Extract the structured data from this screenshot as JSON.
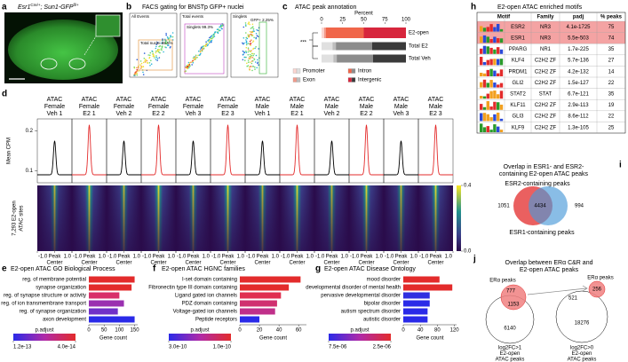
{
  "a": {
    "label": "a",
    "title": {
      "gene1": "Esr1",
      "sup1": "Cre/+",
      "gene2": "; Sun1-GFP",
      "sup2": "fl/+"
    }
  },
  "b": {
    "label": "b",
    "title": "FACS gating for BNSTp GFP+ nuclei",
    "plots": [
      {
        "title": "All Events",
        "gate": "Total nuclei 86.5%",
        "gate_color": "#e08a2c"
      },
      {
        "title": "Total events",
        "gate": "Singlets 99.3%",
        "gate_color": "#c040c0"
      },
      {
        "title": "Singlets",
        "gate": "GFP+ 2.25%",
        "gate_color": "#30b030"
      }
    ]
  },
  "c": {
    "label": "c",
    "chart_data": {
      "type": "stacked_bar_h",
      "title": "ATAC peak annotation",
      "xlabel": "Percent",
      "categories": [
        "E2-open",
        "Total E2",
        "Total Veh"
      ],
      "category_colors": [
        "#e32b2b",
        "#000000",
        "#000000"
      ],
      "xlim": [
        0,
        100
      ],
      "xticks": [
        0,
        25,
        50,
        75,
        100
      ],
      "series": [
        {
          "name": "Promoter",
          "colors": [
            "#fbd5d0",
            "#e0e0e0",
            "#e0e0e0"
          ],
          "values": [
            3,
            13,
            14
          ]
        },
        {
          "name": "Exon",
          "colors": [
            "#f29a8a",
            "#bdbdbd",
            "#bdbdbd"
          ],
          "values": [
            2,
            4,
            4
          ]
        },
        {
          "name": "Intron",
          "colors": [
            "#f0664a",
            "#8c8c8c",
            "#8c8c8c"
          ],
          "values": [
            45,
            43,
            43
          ]
        },
        {
          "name": "Intergenic",
          "colors": [
            "#d7263d",
            "#3a3a3a",
            "#3a3a3a"
          ],
          "values": [
            50,
            40,
            39
          ]
        }
      ],
      "annotation": "***"
    }
  },
  "d": {
    "label": "d",
    "tracks": [
      {
        "lines": [
          "ATAC",
          "Female",
          "Veh 1"
        ],
        "color": "#000000",
        "peak": 0.175
      },
      {
        "lines": [
          "ATAC",
          "Female",
          "E2 1"
        ],
        "color": "#e32b2b",
        "peak": 0.215
      },
      {
        "lines": [
          "ATAC",
          "Female",
          "Veh 2"
        ],
        "color": "#000000",
        "peak": 0.175
      },
      {
        "lines": [
          "ATAC",
          "Female",
          "E2 2"
        ],
        "color": "#e32b2b",
        "peak": 0.215
      },
      {
        "lines": [
          "ATAC",
          "Female",
          "Veh 3"
        ],
        "color": "#000000",
        "peak": 0.175
      },
      {
        "lines": [
          "ATAC",
          "Female",
          "E2 3"
        ],
        "color": "#e32b2b",
        "peak": 0.215
      },
      {
        "lines": [
          "ATAC",
          "Male",
          "Veh 1"
        ],
        "color": "#000000",
        "peak": 0.175
      },
      {
        "lines": [
          "ATAC",
          "Male",
          "E2 1"
        ],
        "color": "#e32b2b",
        "peak": 0.215
      },
      {
        "lines": [
          "ATAC",
          "Male",
          "Veh 2"
        ],
        "color": "#000000",
        "peak": 0.175
      },
      {
        "lines": [
          "ATAC",
          "Male",
          "E2 2"
        ],
        "color": "#e32b2b",
        "peak": 0.215
      },
      {
        "lines": [
          "ATAC",
          "Male",
          "Veh 3"
        ],
        "color": "#000000",
        "peak": 0.175
      },
      {
        "lines": [
          "ATAC",
          "Male",
          "E2 3"
        ],
        "color": "#e32b2b",
        "peak": 0.215
      }
    ],
    "ylabel": "Mean CPM",
    "ylim": [
      0.07,
      0.23
    ],
    "yticks": [
      0.1,
      0.2
    ],
    "baseline": 0.09,
    "heatmap_label": [
      "7,293 E2-open",
      "ATAC sites"
    ],
    "xticks": [
      {
        "value": -1,
        "label": "-1.0"
      },
      {
        "value": 0,
        "label": "Peak"
      },
      {
        "value": 1,
        "label": "1.0"
      }
    ],
    "xtick_sublabel": "Center",
    "colorbar_ticks": [
      0.4,
      {
        "value": 0,
        "label": "0.0"
      }
    ]
  },
  "e": {
    "label": "e",
    "chart_data": {
      "type": "bar_h",
      "title": "E2-open ATAC GO Biological Process",
      "categories": [
        "reg. of membrane potential",
        "synapse organization",
        "reg. of synapse structure or activity",
        "reg. of ion transmembrane transport",
        "reg. of synapse organization",
        "axon development"
      ],
      "values": [
        150,
        140,
        100,
        115,
        95,
        150
      ],
      "colors": [
        "#e32b2b",
        "#e32b2b",
        "#d8306a",
        "#9a30b0",
        "#7030c8",
        "#2a2ae8"
      ],
      "xlabel": "Gene count",
      "xlim": [
        0,
        160
      ],
      "xticks": [
        0,
        50,
        100,
        150
      ],
      "colorbar": {
        "title": "p.adjust",
        "ticks": [
          {
            "value": 1.2e-13,
            "label": "1.2e-13"
          },
          {
            "value": 4e-14,
            "label": "4.0e-14"
          }
        ]
      }
    }
  },
  "f": {
    "label": "f",
    "chart_data": {
      "type": "bar_h",
      "title": "E2-open ATAC HGNC families",
      "categories": [
        "I-set domain containing",
        "Fibronectin type III domain containing",
        "Ligand gated ion channels",
        "PDZ domain containing",
        "Voltage-gated ion channels",
        "Peptide receptors"
      ],
      "values": [
        62,
        50,
        42,
        38,
        36,
        20
      ],
      "colors": [
        "#e32b2b",
        "#e32b2b",
        "#e03050",
        "#d03070",
        "#c0308a",
        "#2a2ae8"
      ],
      "xlabel": "Gene count",
      "xlim": [
        0,
        68
      ],
      "xticks": [
        0,
        20,
        40,
        60
      ],
      "colorbar": {
        "title": "p.adjust",
        "ticks": [
          {
            "value": 3e-10,
            "label": "3.0e-10"
          },
          {
            "value": 1e-10,
            "label": "1.0e-10"
          }
        ]
      }
    }
  },
  "g": {
    "label": "g",
    "chart_data": {
      "type": "bar_h",
      "title": "E2-open ATAC Disease Ontology",
      "categories": [
        "mood disorder",
        "developmental disorder of mental health",
        "pervasive developmental disorder",
        "bipolar disorder",
        "autism spectrum disorder",
        "autistic disorder"
      ],
      "values": [
        85,
        115,
        62,
        62,
        57,
        57
      ],
      "colors": [
        "#e32b2b",
        "#e32b2b",
        "#3030e0",
        "#2a2ae8",
        "#2a2ae8",
        "#2a2ae8"
      ],
      "xlabel": "Gene count",
      "xlim": [
        0,
        125
      ],
      "xticks": [
        0,
        40,
        80,
        120
      ],
      "colorbar": {
        "title": "p.adjust",
        "ticks": [
          {
            "value": 7.5e-06,
            "label": "7.5e-06"
          },
          {
            "value": 2.5e-06,
            "label": "2.5e-06"
          }
        ]
      }
    }
  },
  "h": {
    "label": "h",
    "title": "E2-open ATAC enriched motifs",
    "columns": [
      "Motif",
      "Family",
      "padj",
      "% peaks"
    ],
    "rows": [
      [
        "ESR2",
        "NR3",
        "4.1e-1725",
        75
      ],
      [
        "ESR1",
        "NR3",
        "5.5e-503",
        74
      ],
      [
        "PPARG",
        "NR1",
        "1.7e-225",
        35
      ],
      [
        "KLF4",
        "C2H2 ZF",
        "5.7e-136",
        27
      ],
      [
        "PRDM1",
        "C2H2 ZF",
        "4.2e-132",
        14
      ],
      [
        "GLI2",
        "C2H2 ZF",
        "1.5e-127",
        22
      ],
      [
        "STAT2",
        "STAT",
        "6.7e-121",
        35
      ],
      [
        "KLF11",
        "C2H2 ZF",
        "2.9e-113",
        19
      ],
      [
        "GLI3",
        "C2H2 ZF",
        "8.6e-112",
        22
      ],
      [
        "KLF9",
        "C2H2 ZF",
        "1.3e-105",
        25
      ]
    ],
    "highlight_rows": [
      0,
      1
    ],
    "highlight_color": "#f4a3a3"
  },
  "i": {
    "label": "i",
    "title": [
      "Overlap in ESR1- and ESR2-",
      "containing E2-open ATAC peaks"
    ],
    "set_top": {
      "name": "ESR2-containing peaks",
      "color": "#e32b2b"
    },
    "set_bottom": {
      "name": "ESR1-containing peaks",
      "color": "#4a9ad8"
    },
    "counts": [
      1051,
      4434,
      994
    ]
  },
  "j": {
    "label": "j",
    "title": [
      "Overlap between ERα C&R and",
      "E2-open ATAC peaks"
    ],
    "venns": [
      {
        "small": "ERα peaks",
        "counts": [
          777,
          1153,
          6140
        ],
        "big": [
          "log2FC>1",
          "E2-open",
          "ATAC peaks"
        ]
      },
      {
        "small": "ERα peaks",
        "counts": [
          521,
          256,
          18276
        ],
        "big": [
          "log2FC>0",
          "E2-open",
          "ATAC peaks"
        ]
      }
    ]
  }
}
